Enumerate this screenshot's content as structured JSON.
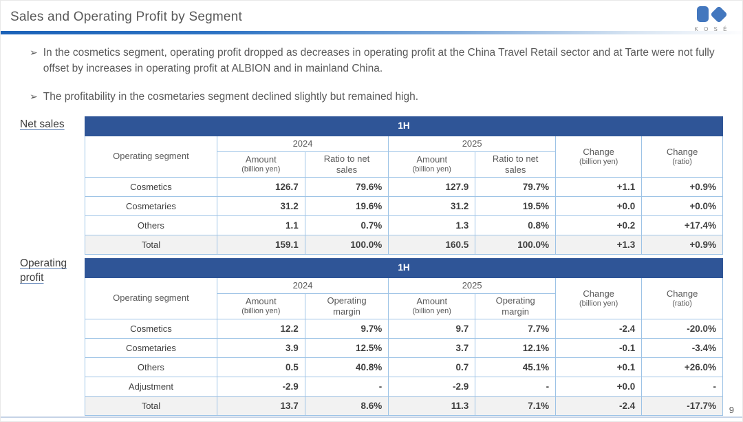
{
  "page": {
    "title": "Sales and Operating Profit by Segment",
    "page_number": "9",
    "logo_brand": "K O S É",
    "bullet_marker": "➢"
  },
  "bullets": [
    {
      "text": "In the cosmetics segment, operating profit dropped as decreases in operating profit at the China Travel Retail sector and at Tarte were not fully offset by increases in operating profit at ALBION and in mainland China."
    },
    {
      "text": "The profitability in the cosmetaries segment declined slightly but remained high."
    }
  ],
  "net_sales": {
    "label": "Net sales",
    "period": "1H",
    "segment_header": "Operating segment",
    "year1": "2024",
    "year2": "2025",
    "amount": "Amount",
    "amount_sub": "(billion yen)",
    "ratio": "Ratio to net sales",
    "change1": "Change",
    "change1_sub": "(billion yen)",
    "change2": "Change",
    "change2_sub": "(ratio)",
    "rows": [
      {
        "segment": "Cosmetics",
        "values": [
          "126.7",
          "79.6%",
          "127.9",
          "79.7%",
          "+1.1",
          "+0.9%"
        ],
        "total": false
      },
      {
        "segment": "Cosmetaries",
        "values": [
          "31.2",
          "19.6%",
          "31.2",
          "19.5%",
          "+0.0",
          "+0.0%"
        ],
        "total": false
      },
      {
        "segment": "Others",
        "values": [
          "1.1",
          "0.7%",
          "1.3",
          "0.8%",
          "+0.2",
          "+17.4%"
        ],
        "total": false
      },
      {
        "segment": "Total",
        "values": [
          "159.1",
          "100.0%",
          "160.5",
          "100.0%",
          "+1.3",
          "+0.9%"
        ],
        "total": true
      }
    ]
  },
  "operating_profit": {
    "label": "Operating profit",
    "period": "1H",
    "segment_header": "Operating segment",
    "year1": "2024",
    "year2": "2025",
    "amount": "Amount",
    "amount_sub": "(billion yen)",
    "ratio": "Operating margin",
    "change1": "Change",
    "change1_sub": "(billion yen)",
    "change2": "Change",
    "change2_sub": "(ratio)",
    "rows": [
      {
        "segment": "Cosmetics",
        "values": [
          "12.2",
          "9.7%",
          "9.7",
          "7.7%",
          "-2.4",
          "-20.0%"
        ],
        "total": false
      },
      {
        "segment": "Cosmetaries",
        "values": [
          "3.9",
          "12.5%",
          "3.7",
          "12.1%",
          "-0.1",
          "-3.4%"
        ],
        "total": false
      },
      {
        "segment": "Others",
        "values": [
          "0.5",
          "40.8%",
          "0.7",
          "45.1%",
          "+0.1",
          "+26.0%"
        ],
        "total": false
      },
      {
        "segment": "Adjustment",
        "values": [
          "-2.9",
          "-",
          "-2.9",
          "-",
          "+0.0",
          "-"
        ],
        "total": false
      },
      {
        "segment": "Total",
        "values": [
          "13.7",
          "8.6%",
          "11.3",
          "7.1%",
          "-2.4",
          "-17.7%"
        ],
        "total": true
      }
    ]
  },
  "colors": {
    "header_blue": "#2f5597",
    "border_blue": "#9dc3e6",
    "accent_rule_blue": "#1b62b8",
    "total_row_bg": "#f2f2f2",
    "logo_blue": "#4377be",
    "text_gray": "#595959"
  }
}
